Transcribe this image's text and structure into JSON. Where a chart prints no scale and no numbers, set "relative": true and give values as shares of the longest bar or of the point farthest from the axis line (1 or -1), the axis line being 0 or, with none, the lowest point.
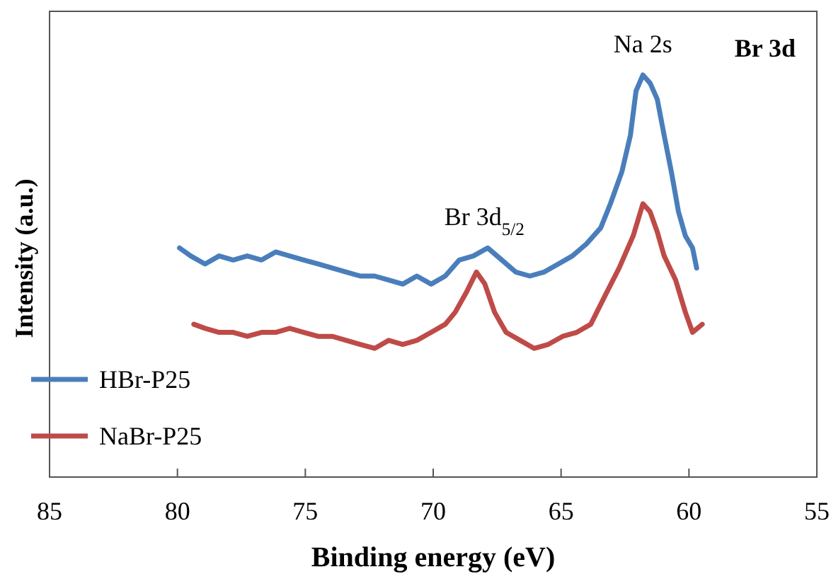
{
  "chart_data": {
    "type": "line",
    "title": "Br 3d",
    "xlabel": "Binding energy (eV)",
    "ylabel": "Intensity (a.u.)",
    "relative": true,
    "xlim": [
      85,
      55
    ],
    "xticks": [
      85,
      80,
      75,
      70,
      65,
      60,
      55
    ],
    "grid": false,
    "legend": "bottom left",
    "marker": "none",
    "line_style": "solid",
    "annotations": [
      {
        "text": "Na 2s",
        "x": 61.8,
        "y": 1
      },
      {
        "text": "Br 3d$_{5/2}$",
        "x": 68.0,
        "y": 0.57
      }
    ],
    "series": [
      {
        "name": "HBr-P25",
        "color": "#4a7ebb",
        "x": [
          79.92,
          79.48,
          78.92,
          78.37,
          77.82,
          77.27,
          76.71,
          76.16,
          75.61,
          75.06,
          74.5,
          73.95,
          73.4,
          72.85,
          72.29,
          71.74,
          71.19,
          70.64,
          70.08,
          69.53,
          68.98,
          68.43,
          67.87,
          67.32,
          66.77,
          66.22,
          65.66,
          65.11,
          64.56,
          64.01,
          63.45,
          63.07,
          62.62,
          62.29,
          62.07,
          61.8,
          61.52,
          61.24,
          60.97,
          60.69,
          60.41,
          60.14,
          59.86,
          59.7
        ],
        "values": [
          0.57,
          0.55,
          0.53,
          0.55,
          0.54,
          0.55,
          0.54,
          0.56,
          0.55,
          0.54,
          0.53,
          0.52,
          0.51,
          0.5,
          0.5,
          0.49,
          0.48,
          0.5,
          0.48,
          0.5,
          0.54,
          0.55,
          0.57,
          0.54,
          0.51,
          0.5,
          0.51,
          0.53,
          0.55,
          0.58,
          0.62,
          0.68,
          0.76,
          0.85,
          0.96,
          1,
          0.98,
          0.94,
          0.85,
          0.76,
          0.66,
          0.6,
          0.57,
          0.52
        ]
      },
      {
        "name": "NaBr-P25",
        "color": "#be4b48",
        "x": [
          79.36,
          78.92,
          78.37,
          77.82,
          77.27,
          76.71,
          76.16,
          75.61,
          75.06,
          74.5,
          73.95,
          73.4,
          72.85,
          72.29,
          71.74,
          71.19,
          70.64,
          70.08,
          69.53,
          69.14,
          68.7,
          68.31,
          67.98,
          67.6,
          67.15,
          66.6,
          66.05,
          65.5,
          64.94,
          64.39,
          63.84,
          63.29,
          62.73,
          62.18,
          61.8,
          61.52,
          61.24,
          60.97,
          60.52,
          60.14,
          59.86,
          59.48
        ],
        "values": [
          0.38,
          0.37,
          0.36,
          0.36,
          0.35,
          0.36,
          0.36,
          0.37,
          0.36,
          0.35,
          0.35,
          0.34,
          0.33,
          0.32,
          0.34,
          0.33,
          0.34,
          0.36,
          0.38,
          0.41,
          0.46,
          0.51,
          0.48,
          0.41,
          0.36,
          0.34,
          0.32,
          0.33,
          0.35,
          0.36,
          0.38,
          0.45,
          0.52,
          0.6,
          0.68,
          0.66,
          0.61,
          0.55,
          0.49,
          0.41,
          0.36,
          0.38
        ]
      }
    ]
  }
}
